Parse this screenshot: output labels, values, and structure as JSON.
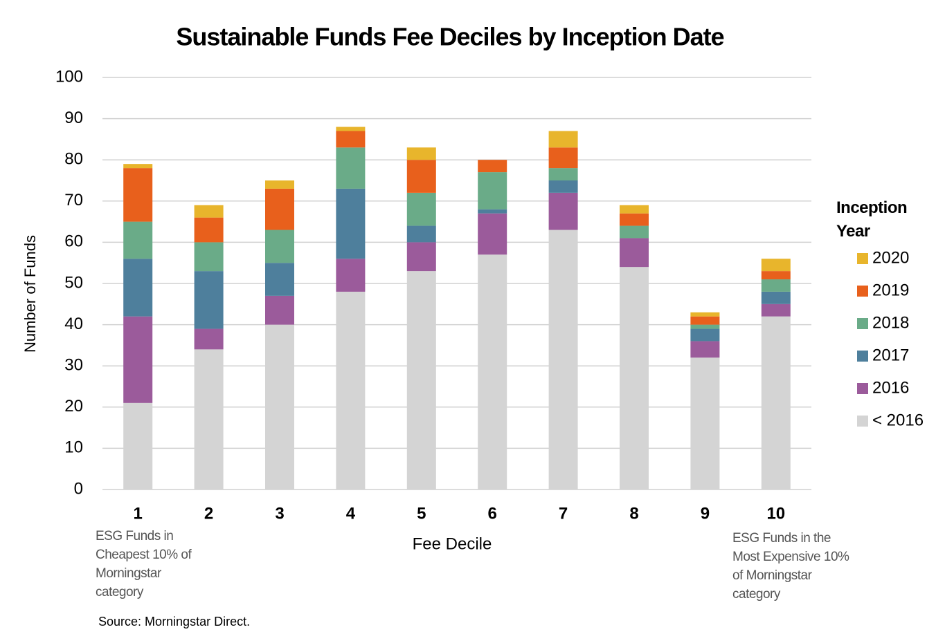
{
  "chart_data": {
    "type": "stacked_bar",
    "title": "Sustainable Funds Fee Deciles by Inception Date",
    "x_label": "Fee Decile",
    "y_label": "Number of Funds",
    "legend_title": "Inception Year",
    "legend_position": "right",
    "annotations": [
      "ESG Funds in Cheapest 10% of Morningstar category",
      "ESG Funds in the Most Expensive 10% of Morningstar category"
    ],
    "source": "Source: Morningstar Direct.",
    "categories": [
      "1",
      "2",
      "3",
      "4",
      "5",
      "6",
      "7",
      "8",
      "9",
      "10"
    ],
    "series": [
      {
        "name": "< 2016",
        "color": "#d4d4d4",
        "values": [
          21,
          34,
          40,
          48,
          53,
          57,
          63,
          54,
          32,
          42
        ]
      },
      {
        "name": "2016",
        "color": "#9b5b9b",
        "values": [
          21,
          5,
          7,
          8,
          7,
          10,
          9,
          7,
          4,
          3
        ]
      },
      {
        "name": "2017",
        "color": "#4e7f9c",
        "values": [
          14,
          14,
          8,
          17,
          4,
          1,
          3,
          0,
          3,
          3
        ]
      },
      {
        "name": "2018",
        "color": "#6aab88",
        "values": [
          9,
          7,
          8,
          10,
          8,
          9,
          3,
          3,
          1,
          3
        ]
      },
      {
        "name": "2019",
        "color": "#e8601c",
        "values": [
          13,
          6,
          10,
          4,
          8,
          3,
          5,
          3,
          2,
          2
        ]
      },
      {
        "name": "2020",
        "color": "#e8b52c",
        "values": [
          1,
          3,
          2,
          1,
          3,
          0,
          4,
          2,
          1,
          3
        ]
      }
    ],
    "ylim": [
      0,
      100
    ],
    "yticks": [
      0,
      10,
      20,
      30,
      40,
      50,
      60,
      70,
      80,
      90,
      100
    ],
    "grid": true
  }
}
